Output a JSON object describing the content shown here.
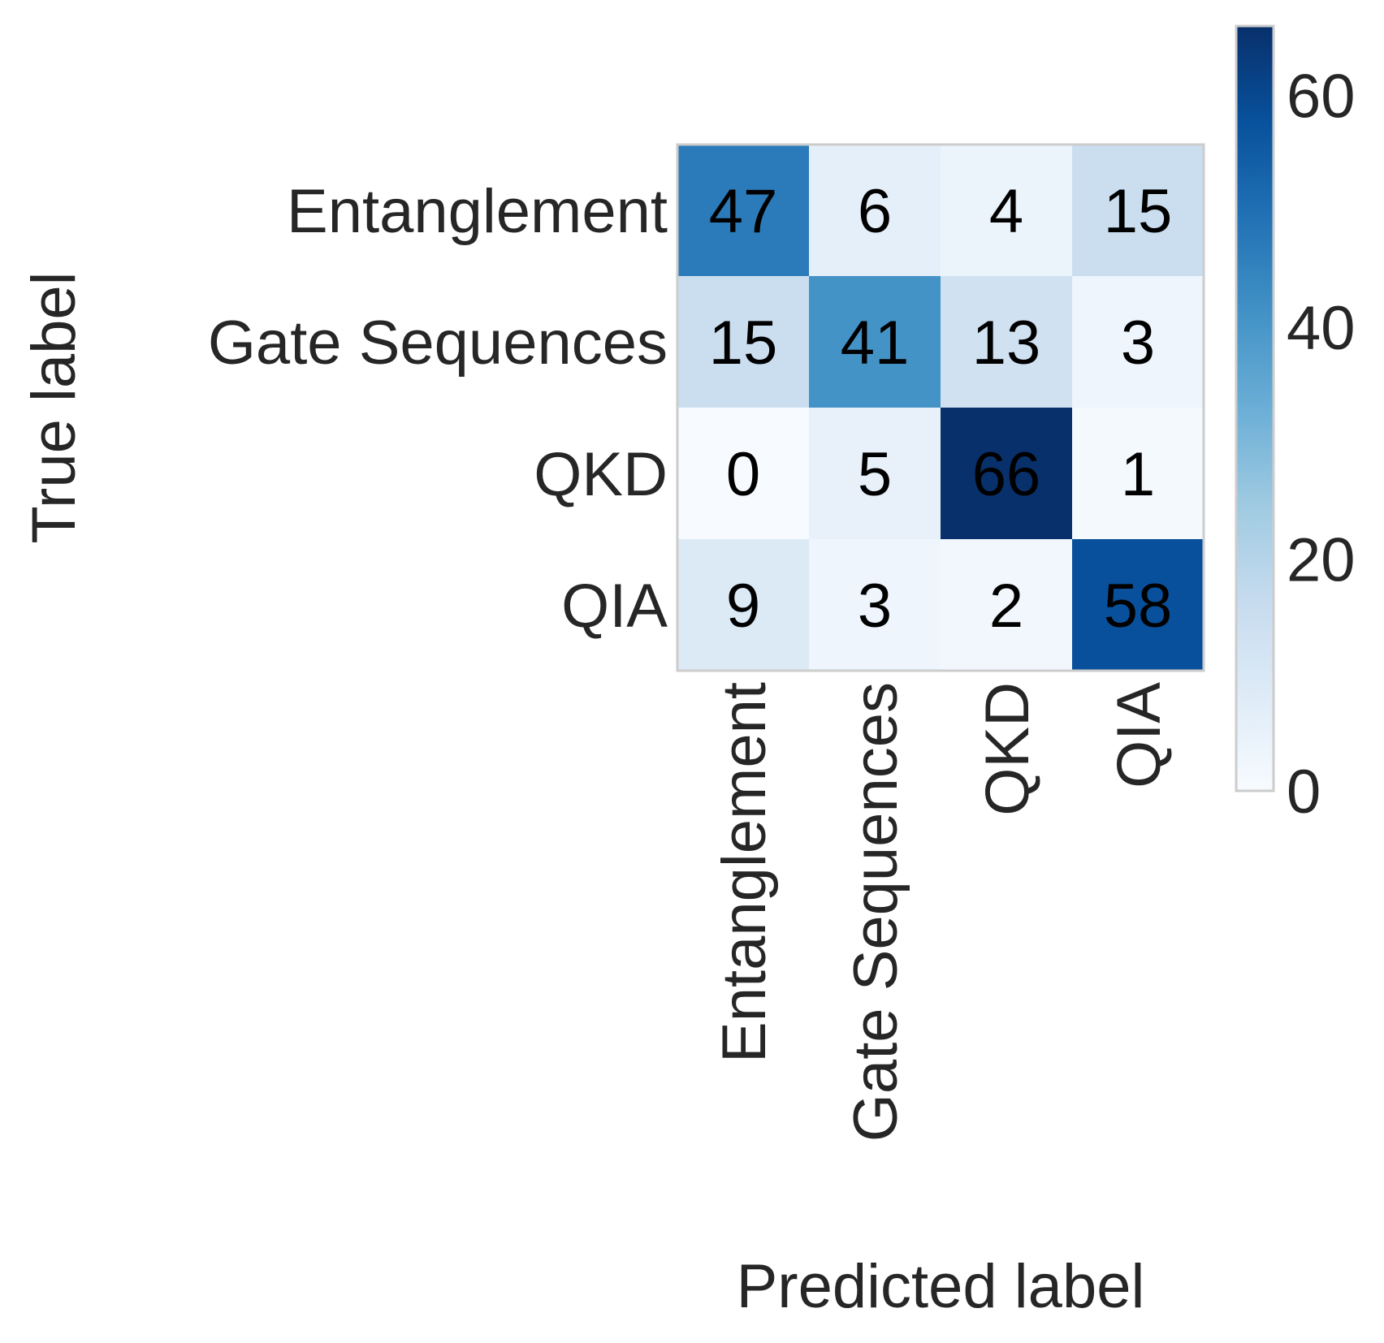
{
  "chart_data": {
    "type": "heatmap",
    "title": "",
    "xlabel": "Predicted label",
    "ylabel": "True label",
    "x_categories": [
      "Entanglement",
      "Gate Sequences",
      "QKD",
      "QIA"
    ],
    "y_categories": [
      "Entanglement",
      "Gate Sequences",
      "QKD",
      "QIA"
    ],
    "values": [
      [
        47,
        6,
        4,
        15
      ],
      [
        15,
        41,
        13,
        3
      ],
      [
        0,
        5,
        66,
        1
      ],
      [
        9,
        3,
        2,
        58
      ]
    ],
    "colormap": "Blues",
    "vmin": 0,
    "vmax": 66,
    "colorbar_ticks": [
      "0",
      "20",
      "40",
      "60"
    ],
    "colorbar_tick_values": [
      0,
      20,
      40,
      60
    ],
    "grid": false
  },
  "colors": {
    "text_dark": "#262626",
    "cell_text": "#000000",
    "frame": "#cccccc",
    "blues_low": "#f7fbff",
    "blues_high": "#08306b"
  }
}
